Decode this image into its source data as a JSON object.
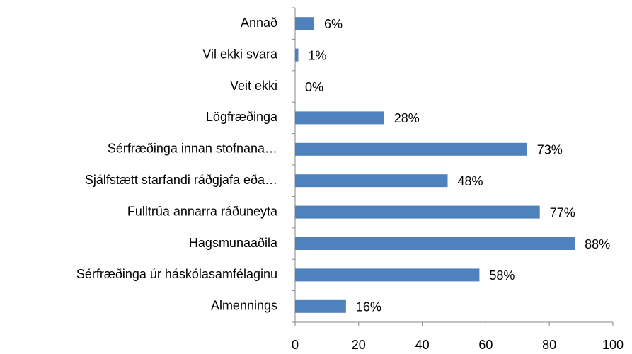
{
  "chart_data": {
    "type": "barh",
    "categories": [
      "Annað",
      "Vil ekki svara",
      "Veit ekki",
      "Lögfræðinga",
      "Sérfræðinga innan stofnana…",
      "Sjálfstætt starfandi ráðgjafa eða…",
      "Fulltrúa annarra ráðuneyta",
      "Hagsmunaaðila",
      "Sérfræðinga úr háskólasamfélaginu",
      "Almennings"
    ],
    "values": [
      6,
      1,
      0,
      28,
      73,
      48,
      77,
      88,
      58,
      16
    ],
    "value_labels": [
      "6%",
      "1%",
      "0%",
      "28%",
      "73%",
      "48%",
      "77%",
      "88%",
      "58%",
      "16%"
    ],
    "color": "#4f81bd",
    "xlim": [
      0,
      100
    ],
    "xticks": [
      0,
      20,
      40,
      60,
      80,
      100
    ],
    "grid": false
  }
}
